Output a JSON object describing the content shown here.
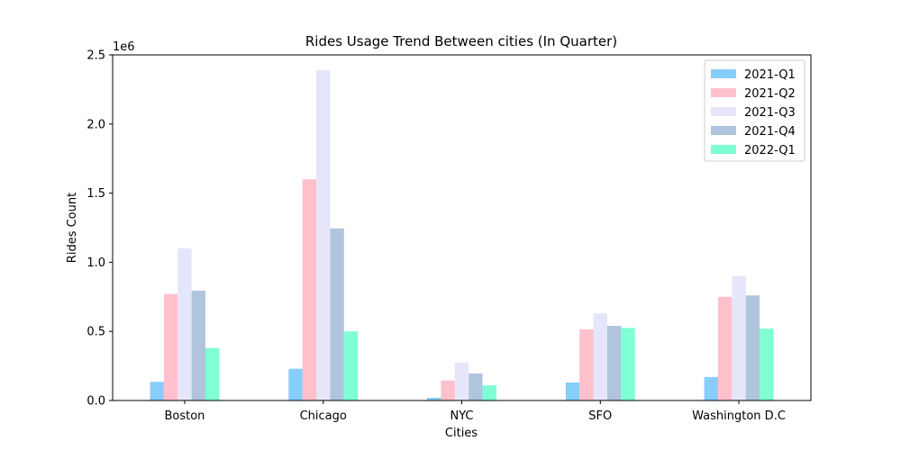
{
  "chart_data": {
    "type": "bar",
    "title": "Rides Usage Trend Between cities (In Quarter)",
    "xlabel": "Cities",
    "ylabel": "Rides Count",
    "y_offset_label": "1e6",
    "y_multiplier": 1000000,
    "ylim": [
      0,
      2500000
    ],
    "yticks": [
      0,
      500000,
      1000000,
      1500000,
      2000000,
      2500000
    ],
    "ytick_labels": [
      "0.0",
      "0.5",
      "1.0",
      "1.5",
      "2.0",
      "2.5"
    ],
    "grid": false,
    "legend_position": "top-right",
    "categories": [
      "Boston",
      "Chicago",
      "NYC",
      "SFO",
      "Washington D.C"
    ],
    "series": [
      {
        "name": "2021-Q1",
        "color": "#87CEFA",
        "values": [
          135000,
          230000,
          20000,
          130000,
          170000
        ]
      },
      {
        "name": "2021-Q2",
        "color": "#FFC0CB",
        "values": [
          770000,
          1600000,
          145000,
          515000,
          750000
        ]
      },
      {
        "name": "2021-Q3",
        "color": "#E6E6FA",
        "values": [
          1100000,
          2390000,
          275000,
          630000,
          900000
        ]
      },
      {
        "name": "2021-Q4",
        "color": "#B0C4DE",
        "values": [
          795000,
          1245000,
          195000,
          540000,
          760000
        ]
      },
      {
        "name": "2022-Q1",
        "color": "#7FFFD4",
        "values": [
          380000,
          500000,
          110000,
          525000,
          520000
        ]
      }
    ]
  }
}
